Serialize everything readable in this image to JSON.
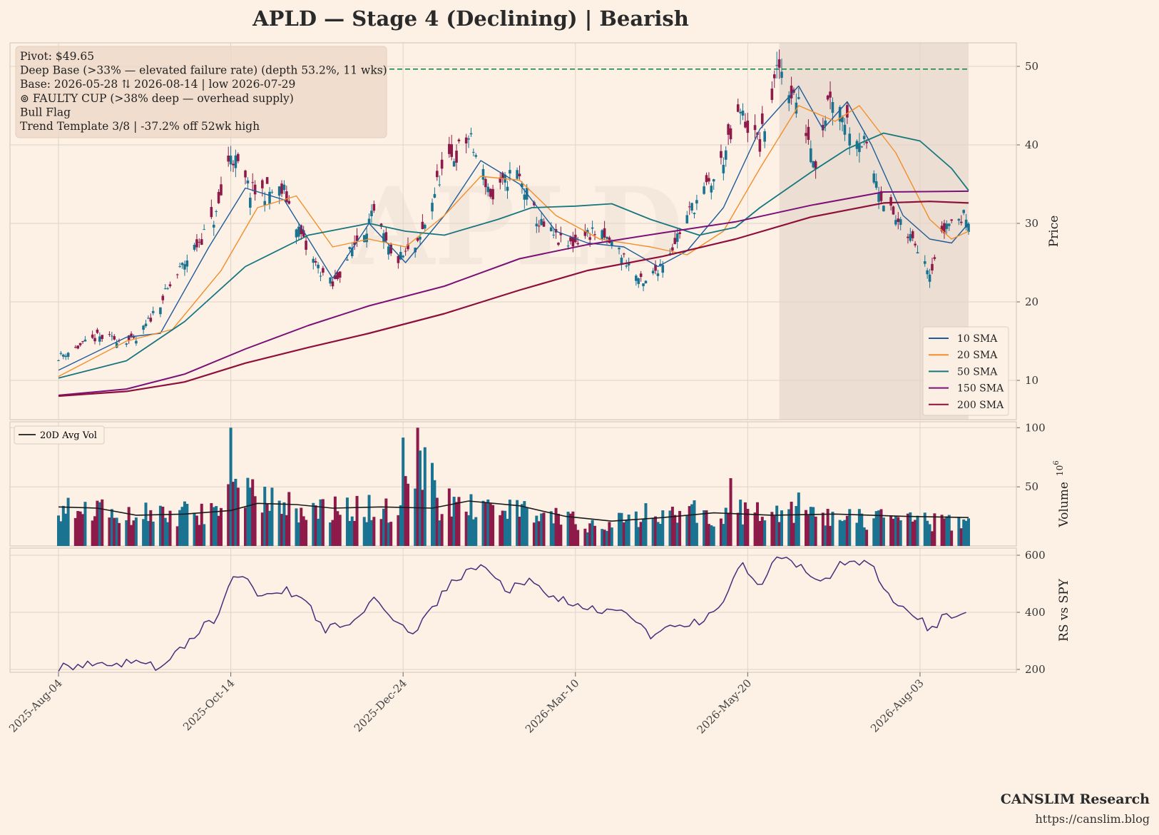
{
  "title": "APLD  —  Stage 4 (Declining)  |  Bearish",
  "watermark": "APLD",
  "annotations": [
    "Pivot: $49.65",
    "Deep Base (>33% — elevated failure rate)  (depth 53.2%, 11 wks)",
    "Base: 2026-05-28 ⇅ 2026-08-14  |  low 2026-07-29",
    "⊚ FAULTY CUP (>38% deep — overhead supply)",
    "Bull Flag",
    "Trend Template 3/8  |  -37.2% off 52wk high"
  ],
  "brand": "CANSLIM Research",
  "url": "https://canslim.blog",
  "colors": {
    "background": "#fdf1e6",
    "up_candle": "#1a7391",
    "down_candle": "#8e1a4a",
    "sma10": "#1f5c99",
    "sma20": "#f28e2b",
    "sma50": "#17777f",
    "sma150": "#7b1076",
    "sma200": "#8e0f3c",
    "pivot_line": "#1a8a4a",
    "avg_vol": "#1a1a1a",
    "rs_line": "#4b2c7a",
    "base_shade": "#e6d7cb"
  },
  "chart_data": [
    {
      "panel": "price",
      "type": "candlestick",
      "ylabel": "Price",
      "ylim": [
        5,
        53
      ],
      "yticks": [
        10,
        20,
        30,
        40,
        50
      ],
      "xticks": [
        "2025-Aug-04",
        "2025-Oct-14",
        "2025-Dec-24",
        "2026-Mar-10",
        "2026-May-20",
        "2026-Aug-03"
      ],
      "x_range": [
        "2025-08-04",
        "2026-08-14"
      ],
      "pivot": 49.65,
      "base_shade": [
        "2026-05-28",
        "2026-08-14"
      ],
      "grid": true,
      "legend_position": "lower right",
      "close_path": [
        [
          "2025-08-04",
          13
        ],
        [
          "2025-08-20",
          15.5
        ],
        [
          "2025-09-05",
          15
        ],
        [
          "2025-09-15",
          20
        ],
        [
          "2025-09-25",
          25
        ],
        [
          "2025-10-08",
          31
        ],
        [
          "2025-10-14",
          39
        ],
        [
          "2025-10-22",
          34
        ],
        [
          "2025-11-05",
          34
        ],
        [
          "2025-11-15",
          26
        ],
        [
          "2025-11-25",
          22
        ],
        [
          "2025-12-05",
          28
        ],
        [
          "2025-12-12",
          31
        ],
        [
          "2025-12-20",
          25
        ],
        [
          "2025-12-30",
          27
        ],
        [
          "2026-01-08",
          36
        ],
        [
          "2026-01-20",
          41
        ],
        [
          "2026-01-30",
          33
        ],
        [
          "2026-02-08",
          37
        ],
        [
          "2026-02-18",
          30
        ],
        [
          "2026-03-01",
          27
        ],
        [
          "2026-03-12",
          29
        ],
        [
          "2026-03-22",
          27
        ],
        [
          "2026-04-02",
          22
        ],
        [
          "2026-04-12",
          26
        ],
        [
          "2026-04-22",
          32
        ],
        [
          "2026-05-02",
          36
        ],
        [
          "2026-05-12",
          44
        ],
        [
          "2026-05-20",
          40
        ],
        [
          "2026-05-28",
          50
        ],
        [
          "2026-06-05",
          45
        ],
        [
          "2026-06-12",
          38
        ],
        [
          "2026-06-18",
          47
        ],
        [
          "2026-06-25",
          43
        ],
        [
          "2026-07-02",
          40
        ],
        [
          "2026-07-10",
          33
        ],
        [
          "2026-07-18",
          29
        ],
        [
          "2026-07-25",
          27
        ],
        [
          "2026-07-29",
          24
        ],
        [
          "2026-08-05",
          30
        ],
        [
          "2026-08-14",
          31
        ]
      ],
      "series": [
        {
          "name": "10 SMA",
          "points": [
            [
              "2025-08-04",
              11.3
            ],
            [
              "2025-09-01",
              15.5
            ],
            [
              "2025-09-15",
              16
            ],
            [
              "2025-10-05",
              27
            ],
            [
              "2025-10-20",
              34.5
            ],
            [
              "2025-11-05",
              33
            ],
            [
              "2025-11-25",
              23
            ],
            [
              "2025-12-10",
              30
            ],
            [
              "2025-12-25",
              25
            ],
            [
              "2026-01-10",
              31
            ],
            [
              "2026-01-25",
              38
            ],
            [
              "2026-02-10",
              35
            ],
            [
              "2026-02-25",
              29
            ],
            [
              "2026-03-10",
              27.5
            ],
            [
              "2026-03-25",
              27
            ],
            [
              "2026-04-08",
              24.5
            ],
            [
              "2026-04-20",
              26.5
            ],
            [
              "2026-05-05",
              32
            ],
            [
              "2026-05-20",
              42
            ],
            [
              "2026-06-05",
              47.5
            ],
            [
              "2026-06-15",
              42
            ],
            [
              "2026-06-25",
              45.5
            ],
            [
              "2026-07-05",
              40
            ],
            [
              "2026-07-18",
              31
            ],
            [
              "2026-07-29",
              28
            ],
            [
              "2026-08-07",
              27.5
            ],
            [
              "2026-08-14",
              30
            ]
          ]
        },
        {
          "name": "20 SMA",
          "points": [
            [
              "2025-08-04",
              10.5
            ],
            [
              "2025-09-01",
              15
            ],
            [
              "2025-09-20",
              16.5
            ],
            [
              "2025-10-10",
              24
            ],
            [
              "2025-10-25",
              32
            ],
            [
              "2025-11-10",
              33.5
            ],
            [
              "2025-11-25",
              27
            ],
            [
              "2025-12-10",
              28
            ],
            [
              "2025-12-25",
              27
            ],
            [
              "2026-01-10",
              31
            ],
            [
              "2026-01-25",
              36
            ],
            [
              "2026-02-10",
              35.5
            ],
            [
              "2026-02-25",
              31
            ],
            [
              "2026-03-15",
              28
            ],
            [
              "2026-04-05",
              27
            ],
            [
              "2026-04-20",
              26
            ],
            [
              "2026-05-05",
              29
            ],
            [
              "2026-05-20",
              37
            ],
            [
              "2026-06-05",
              45
            ],
            [
              "2026-06-20",
              43
            ],
            [
              "2026-06-30",
              45
            ],
            [
              "2026-07-15",
              39
            ],
            [
              "2026-07-29",
              30.5
            ],
            [
              "2026-08-07",
              28
            ],
            [
              "2026-08-14",
              29
            ]
          ]
        },
        {
          "name": "50 SMA",
          "points": [
            [
              "2025-08-04",
              10.3
            ],
            [
              "2025-09-01",
              12.5
            ],
            [
              "2025-09-25",
              17.5
            ],
            [
              "2025-10-20",
              24.5
            ],
            [
              "2025-11-15",
              28.5
            ],
            [
              "2025-12-10",
              30
            ],
            [
              "2025-12-25",
              29
            ],
            [
              "2026-01-10",
              28.5
            ],
            [
              "2026-02-01",
              30.5
            ],
            [
              "2026-02-15",
              32
            ],
            [
              "2026-03-05",
              32.2
            ],
            [
              "2026-03-20",
              32.5
            ],
            [
              "2026-04-05",
              30.5
            ],
            [
              "2026-04-25",
              28.5
            ],
            [
              "2026-05-10",
              29.5
            ],
            [
              "2026-05-20",
              32
            ],
            [
              "2026-06-10",
              36.5
            ],
            [
              "2026-06-25",
              39.5
            ],
            [
              "2026-07-10",
              41.5
            ],
            [
              "2026-07-25",
              40.5
            ],
            [
              "2026-08-07",
              37
            ],
            [
              "2026-08-14",
              34.2
            ]
          ]
        },
        {
          "name": "150 SMA",
          "points": [
            [
              "2025-08-04",
              8.1
            ],
            [
              "2025-09-01",
              8.9
            ],
            [
              "2025-09-25",
              10.8
            ],
            [
              "2025-10-20",
              14
            ],
            [
              "2025-11-15",
              17
            ],
            [
              "2025-12-10",
              19.5
            ],
            [
              "2026-01-10",
              22
            ],
            [
              "2026-02-10",
              25.5
            ],
            [
              "2026-03-10",
              27.3
            ],
            [
              "2026-04-10",
              28.8
            ],
            [
              "2026-05-10",
              30.2
            ],
            [
              "2026-06-10",
              32.3
            ],
            [
              "2026-07-10",
              34
            ],
            [
              "2026-08-14",
              34.1
            ]
          ]
        },
        {
          "name": "200 SMA",
          "points": [
            [
              "2025-08-04",
              8
            ],
            [
              "2025-09-01",
              8.6
            ],
            [
              "2025-09-25",
              9.8
            ],
            [
              "2025-10-20",
              12.2
            ],
            [
              "2025-11-15",
              14.2
            ],
            [
              "2025-12-10",
              16
            ],
            [
              "2026-01-10",
              18.5
            ],
            [
              "2026-02-10",
              21.5
            ],
            [
              "2026-03-10",
              24
            ],
            [
              "2026-04-10",
              25.8
            ],
            [
              "2026-05-10",
              28
            ],
            [
              "2026-06-10",
              30.8
            ],
            [
              "2026-07-10",
              32.6
            ],
            [
              "2026-07-29",
              32.8
            ],
            [
              "2026-08-14",
              32.6
            ]
          ]
        }
      ]
    },
    {
      "panel": "volume",
      "type": "bar",
      "ylabel": "Volume  10^6",
      "ylabel_main": "Volume",
      "ylabel_exp": "6",
      "ylim": [
        0,
        105
      ],
      "yticks": [
        50,
        100
      ],
      "legend_position": "upper left",
      "avg_name": "20D Avg Vol",
      "level_points": [
        [
          "2025-08-04",
          35
        ],
        [
          "2025-09-01",
          28
        ],
        [
          "2025-10-10",
          30
        ],
        [
          "2025-10-14",
          100
        ],
        [
          "2025-10-16",
          50
        ],
        [
          "2025-11-15",
          33
        ],
        [
          "2025-12-20",
          34
        ],
        [
          "2026-01-05",
          80
        ],
        [
          "2026-01-08",
          38
        ],
        [
          "2026-02-10",
          33
        ],
        [
          "2026-03-10",
          20
        ],
        [
          "2026-04-10",
          25
        ],
        [
          "2026-05-10",
          32
        ],
        [
          "2026-06-10",
          28
        ],
        [
          "2026-07-10",
          24
        ],
        [
          "2026-08-14",
          20
        ]
      ],
      "avg_points": [
        [
          "2025-08-04",
          33
        ],
        [
          "2025-08-20",
          32
        ],
        [
          "2025-09-05",
          26
        ],
        [
          "2025-09-25",
          27
        ],
        [
          "2025-10-14",
          30
        ],
        [
          "2025-10-25",
          36
        ],
        [
          "2025-11-10",
          35
        ],
        [
          "2025-11-25",
          32
        ],
        [
          "2025-12-15",
          33
        ],
        [
          "2026-01-05",
          32
        ],
        [
          "2026-01-20",
          38
        ],
        [
          "2026-02-10",
          34
        ],
        [
          "2026-03-01",
          25
        ],
        [
          "2026-03-20",
          21
        ],
        [
          "2026-04-10",
          24
        ],
        [
          "2026-05-01",
          28
        ],
        [
          "2026-05-25",
          26
        ],
        [
          "2026-06-20",
          27
        ],
        [
          "2026-07-20",
          25
        ],
        [
          "2026-08-14",
          24
        ]
      ]
    },
    {
      "panel": "rs",
      "type": "line",
      "ylabel": "RS vs SPY",
      "ylim": [
        190,
        625
      ],
      "yticks": [
        200,
        400,
        600
      ],
      "points": [
        [
          "2025-08-04",
          205
        ],
        [
          "2025-08-20",
          215
        ],
        [
          "2025-09-05",
          230
        ],
        [
          "2025-09-15",
          200
        ],
        [
          "2025-09-30",
          330
        ],
        [
          "2025-10-08",
          380
        ],
        [
          "2025-10-14",
          520
        ],
        [
          "2025-10-18",
          540
        ],
        [
          "2025-10-25",
          470
        ],
        [
          "2025-11-05",
          480
        ],
        [
          "2025-11-15",
          420
        ],
        [
          "2025-11-22",
          340
        ],
        [
          "2025-12-05",
          380
        ],
        [
          "2025-12-12",
          440
        ],
        [
          "2025-12-20",
          360
        ],
        [
          "2025-12-28",
          330
        ],
        [
          "2026-01-05",
          420
        ],
        [
          "2026-01-15",
          520
        ],
        [
          "2026-01-25",
          560
        ],
        [
          "2026-02-05",
          480
        ],
        [
          "2026-02-15",
          510
        ],
        [
          "2026-02-25",
          450
        ],
        [
          "2026-03-05",
          420
        ],
        [
          "2026-03-15",
          400
        ],
        [
          "2026-03-25",
          420
        ],
        [
          "2026-04-05",
          310
        ],
        [
          "2026-04-15",
          350
        ],
        [
          "2026-04-25",
          370
        ],
        [
          "2026-05-05",
          420
        ],
        [
          "2026-05-12",
          580
        ],
        [
          "2026-05-20",
          480
        ],
        [
          "2026-05-28",
          610
        ],
        [
          "2026-06-05",
          560
        ],
        [
          "2026-06-15",
          500
        ],
        [
          "2026-06-25",
          590
        ],
        [
          "2026-07-05",
          560
        ],
        [
          "2026-07-15",
          440
        ],
        [
          "2026-07-25",
          380
        ],
        [
          "2026-07-29",
          340
        ],
        [
          "2026-08-05",
          390
        ],
        [
          "2026-08-14",
          390
        ]
      ]
    }
  ]
}
